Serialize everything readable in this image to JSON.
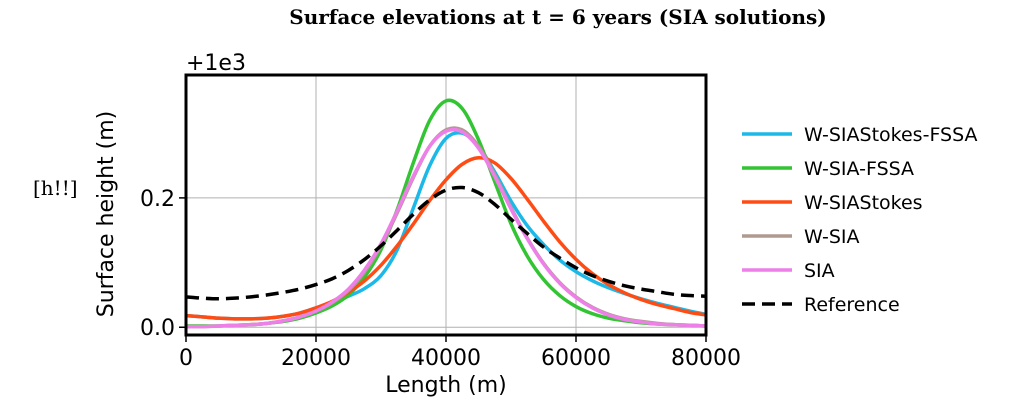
{
  "side_note": "[h!!]",
  "chart_data": {
    "type": "line",
    "title": "Surface elevations at t = 6 years (SIA solutions)",
    "xlabel": "Length (m)",
    "ylabel": "Surface height (m)",
    "offset_text": "+1e3",
    "xlim": [
      0,
      80000
    ],
    "ylim": [
      -0.012,
      0.39
    ],
    "xticks": [
      0,
      20000,
      40000,
      60000,
      80000
    ],
    "xtick_labels": [
      "0",
      "20000",
      "40000",
      "60000",
      "80000"
    ],
    "yticks": [
      0.0,
      0.2
    ],
    "ytick_labels": [
      "0.0",
      "0.2"
    ],
    "grid": true,
    "legend_position": "outside-right",
    "x": [
      0,
      2500,
      5000,
      7500,
      10000,
      12500,
      15000,
      17500,
      20000,
      22500,
      25000,
      27500,
      30000,
      32500,
      35000,
      37500,
      40000,
      42500,
      45000,
      47500,
      50000,
      52500,
      55000,
      57500,
      60000,
      62500,
      65000,
      67500,
      70000,
      72500,
      75000,
      77500,
      80000
    ],
    "series": [
      {
        "name": "W-SIAStokes-FSSA",
        "color": "#1cb8e8",
        "dash": "solid",
        "values": [
          0.018,
          0.016,
          0.014,
          0.013,
          0.013,
          0.014,
          0.017,
          0.022,
          0.03,
          0.038,
          0.048,
          0.06,
          0.08,
          0.12,
          0.185,
          0.25,
          0.292,
          0.3,
          0.28,
          0.24,
          0.195,
          0.157,
          0.128,
          0.104,
          0.086,
          0.072,
          0.061,
          0.052,
          0.044,
          0.037,
          0.031,
          0.025,
          0.02
        ]
      },
      {
        "name": "W-SIA-FSSA",
        "color": "#33c433",
        "dash": "solid",
        "values": [
          0.002,
          0.002,
          0.002,
          0.003,
          0.004,
          0.006,
          0.009,
          0.014,
          0.022,
          0.033,
          0.05,
          0.078,
          0.12,
          0.182,
          0.255,
          0.32,
          0.35,
          0.338,
          0.29,
          0.225,
          0.16,
          0.11,
          0.074,
          0.049,
          0.032,
          0.021,
          0.014,
          0.01,
          0.007,
          0.005,
          0.004,
          0.003,
          0.002
        ]
      },
      {
        "name": "W-SIAStokes",
        "color": "#ff4c14",
        "dash": "solid",
        "values": [
          0.018,
          0.016,
          0.014,
          0.013,
          0.013,
          0.014,
          0.017,
          0.022,
          0.03,
          0.04,
          0.054,
          0.072,
          0.096,
          0.126,
          0.16,
          0.196,
          0.228,
          0.252,
          0.262,
          0.254,
          0.23,
          0.198,
          0.164,
          0.132,
          0.105,
          0.083,
          0.066,
          0.053,
          0.043,
          0.035,
          0.029,
          0.023,
          0.019
        ]
      },
      {
        "name": "W-SIA",
        "color": "#b09a90",
        "dash": "solid",
        "values": [
          0.001,
          0.001,
          0.002,
          0.003,
          0.004,
          0.006,
          0.01,
          0.016,
          0.025,
          0.038,
          0.057,
          0.086,
          0.126,
          0.177,
          0.232,
          0.28,
          0.305,
          0.305,
          0.28,
          0.236,
          0.185,
          0.138,
          0.099,
          0.069,
          0.047,
          0.031,
          0.02,
          0.013,
          0.009,
          0.006,
          0.004,
          0.003,
          0.002
        ]
      },
      {
        "name": "SIA",
        "color": "#ee7fe8",
        "dash": "solid",
        "values": [
          0.001,
          0.001,
          0.002,
          0.003,
          0.004,
          0.006,
          0.01,
          0.016,
          0.025,
          0.039,
          0.059,
          0.089,
          0.129,
          0.18,
          0.234,
          0.28,
          0.303,
          0.302,
          0.277,
          0.233,
          0.183,
          0.137,
          0.098,
          0.068,
          0.046,
          0.03,
          0.019,
          0.012,
          0.008,
          0.005,
          0.004,
          0.003,
          0.002
        ]
      },
      {
        "name": "Reference",
        "color": "#000000",
        "dash": "dashed",
        "values": [
          0.047,
          0.045,
          0.044,
          0.045,
          0.047,
          0.05,
          0.054,
          0.059,
          0.066,
          0.075,
          0.088,
          0.105,
          0.126,
          0.15,
          0.175,
          0.197,
          0.212,
          0.216,
          0.208,
          0.19,
          0.167,
          0.145,
          0.124,
          0.107,
          0.092,
          0.08,
          0.071,
          0.064,
          0.059,
          0.055,
          0.051,
          0.049,
          0.048
        ]
      }
    ]
  }
}
